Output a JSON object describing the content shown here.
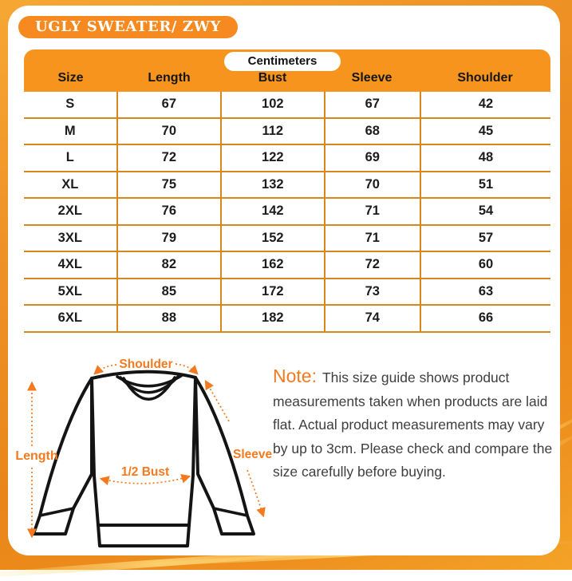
{
  "header": {
    "title": "UGLY SWEATER/ ZWY"
  },
  "chart_data": {
    "type": "table",
    "title": "UGLY SWEATER/ ZWY",
    "unit_label": "Centimeters",
    "columns": [
      "Size",
      "Length",
      "Bust",
      "Sleeve",
      "Shoulder"
    ],
    "rows": [
      [
        "S",
        67,
        102,
        67,
        42
      ],
      [
        "M",
        70,
        112,
        68,
        45
      ],
      [
        "L",
        72,
        122,
        69,
        48
      ],
      [
        "XL",
        75,
        132,
        70,
        51
      ],
      [
        "2XL",
        76,
        142,
        71,
        54
      ],
      [
        "3XL",
        79,
        152,
        71,
        57
      ],
      [
        "4XL",
        82,
        162,
        72,
        60
      ],
      [
        "5XL",
        85,
        172,
        73,
        63
      ],
      [
        "6XL",
        88,
        182,
        74,
        66
      ]
    ]
  },
  "diagram": {
    "shoulder": "Shoulder",
    "length": "Length",
    "half_bust": "1/2 Bust",
    "sleeve": "Sleeve"
  },
  "note": {
    "prefix": "Note:",
    "text": "This size guide shows product measurements taken when products are laid flat. Actual product measurements may vary by up to 3cm. Please check and compare the size carefully before buying."
  },
  "colors": {
    "frame_orange": "#EC8A1C",
    "header_orange": "#F7941E",
    "badge_orange": "#F6891F",
    "divider_orange": "#D6881B",
    "annotation_orange": "#F4791F",
    "text_black": "#1C1C1C"
  }
}
